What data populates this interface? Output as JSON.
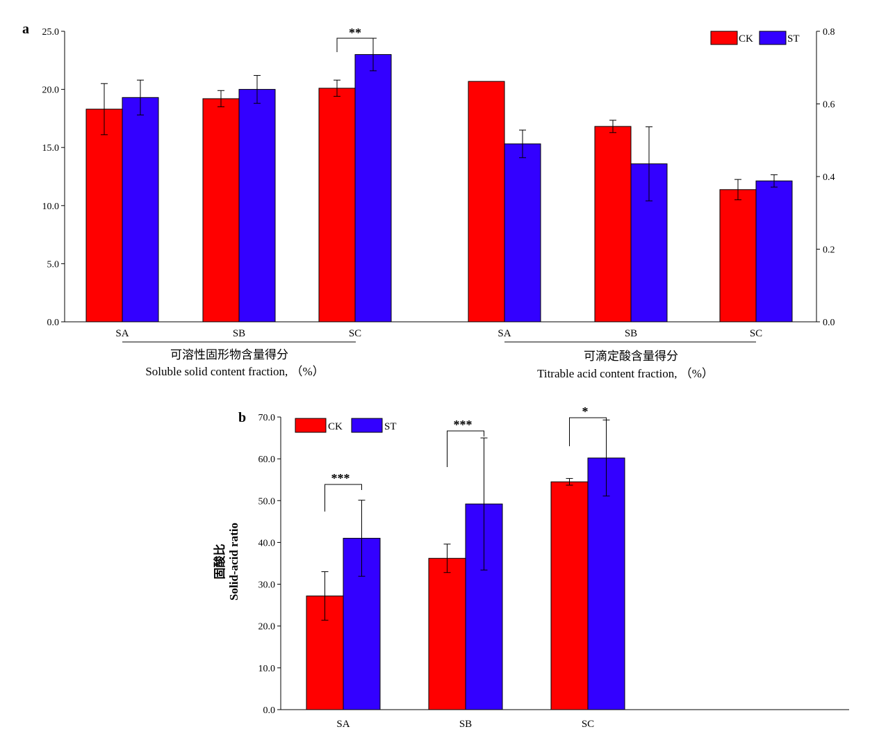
{
  "colors": {
    "CK": "#ff0000",
    "ST": "#3300ff",
    "axis": "#000000"
  },
  "legend": [
    "CK",
    "ST"
  ],
  "chart_data": [
    {
      "panel": "a",
      "type": "bar",
      "left_axis": {
        "ylim": [
          0,
          25
        ],
        "ticks": [
          "0.0",
          "5.0",
          "10.0",
          "15.0",
          "20.0",
          "25.0"
        ]
      },
      "right_axis": {
        "ylim": [
          0,
          0.8
        ],
        "ticks": [
          "0.0",
          "0.2",
          "0.4",
          "0.6",
          "0.8"
        ]
      },
      "groups": [
        {
          "label_cn": "可溶性固形物含量得分",
          "label_en": "Soluble solid content fraction, （%）",
          "axis": "left",
          "categories": [
            "SA",
            "SB",
            "SC"
          ],
          "series": [
            {
              "name": "CK",
              "values": [
                18.3,
                19.2,
                20.1
              ],
              "errors": [
                2.2,
                0.7,
                0.7
              ]
            },
            {
              "name": "ST",
              "values": [
                19.3,
                20.0,
                23.0
              ],
              "errors": [
                1.5,
                1.2,
                1.4
              ]
            }
          ],
          "annotations": [
            {
              "category": "SC",
              "text": "**"
            }
          ]
        },
        {
          "label_cn": "可滴定酸含量得分",
          "label_en": "Titrable acid content fraction, （%）",
          "axis": "right",
          "categories": [
            "SA",
            "SB",
            "SC"
          ],
          "series": [
            {
              "name": "CK",
              "values": [
                0.662,
                0.538,
                0.364
              ],
              "errors": [
                0,
                0.017,
                0.028
              ]
            },
            {
              "name": "ST",
              "values": [
                0.49,
                0.435,
                0.388
              ],
              "errors": [
                0.038,
                0.102,
                0.017
              ]
            }
          ],
          "annotations": []
        }
      ]
    },
    {
      "panel": "b",
      "type": "bar",
      "ylabel_cn": "固酸比",
      "ylabel_en": "Solid-acid ratio",
      "ylim": [
        0,
        70
      ],
      "ticks": [
        "0.0",
        "10.0",
        "20.0",
        "30.0",
        "40.0",
        "50.0",
        "60.0",
        "70.0"
      ],
      "categories": [
        "SA",
        "SB",
        "SC"
      ],
      "series": [
        {
          "name": "CK",
          "values": [
            27.2,
            36.2,
            54.5
          ],
          "errors": [
            5.8,
            3.4,
            0.8
          ]
        },
        {
          "name": "ST",
          "values": [
            41.0,
            49.2,
            60.2
          ],
          "errors": [
            9.1,
            15.8,
            9.1
          ]
        }
      ],
      "annotations": [
        {
          "category": "SA",
          "text": "***"
        },
        {
          "category": "SB",
          "text": "***"
        },
        {
          "category": "SC",
          "text": "*"
        }
      ]
    }
  ]
}
